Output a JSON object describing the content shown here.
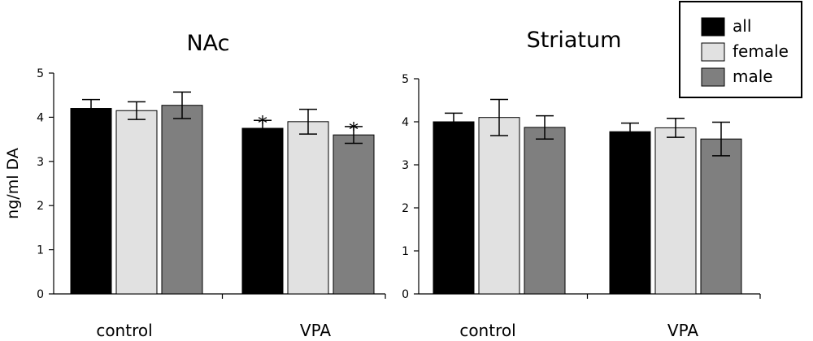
{
  "legend": {
    "entries": [
      {
        "label": "all",
        "color": "#000000"
      },
      {
        "label": "female",
        "color": "#e1e1e1"
      },
      {
        "label": "male",
        "color": "#7f7f7f"
      }
    ]
  },
  "chart_data": [
    {
      "type": "bar",
      "title": "NAc",
      "ylabel": "ng/ml DA",
      "xlabel": "",
      "ylim": [
        0,
        5
      ],
      "yticks": [
        0,
        1,
        2,
        3,
        4,
        5
      ],
      "categories": [
        "control",
        "VPA"
      ],
      "series": [
        {
          "name": "all",
          "values": [
            4.2,
            3.75
          ],
          "errors": [
            0.2,
            0.18
          ],
          "significance": [
            "",
            "*"
          ]
        },
        {
          "name": "female",
          "values": [
            4.15,
            3.9
          ],
          "errors": [
            0.2,
            0.28
          ],
          "significance": [
            "",
            ""
          ]
        },
        {
          "name": "male",
          "values": [
            4.27,
            3.6
          ],
          "errors": [
            0.3,
            0.19
          ],
          "significance": [
            "",
            "*"
          ]
        }
      ]
    },
    {
      "type": "bar",
      "title": "Striatum",
      "ylabel": "",
      "xlabel": "",
      "ylim": [
        0,
        5
      ],
      "yticks": [
        0,
        1,
        2,
        3,
        4,
        5
      ],
      "categories": [
        "control",
        "VPA"
      ],
      "series": [
        {
          "name": "all",
          "values": [
            4.0,
            3.77
          ],
          "errors": [
            0.2,
            0.2
          ],
          "significance": [
            "",
            ""
          ]
        },
        {
          "name": "female",
          "values": [
            4.1,
            3.86
          ],
          "errors": [
            0.42,
            0.22
          ],
          "significance": [
            "",
            ""
          ]
        },
        {
          "name": "male",
          "values": [
            3.87,
            3.6
          ],
          "errors": [
            0.27,
            0.39
          ],
          "significance": [
            "",
            ""
          ]
        }
      ]
    }
  ]
}
